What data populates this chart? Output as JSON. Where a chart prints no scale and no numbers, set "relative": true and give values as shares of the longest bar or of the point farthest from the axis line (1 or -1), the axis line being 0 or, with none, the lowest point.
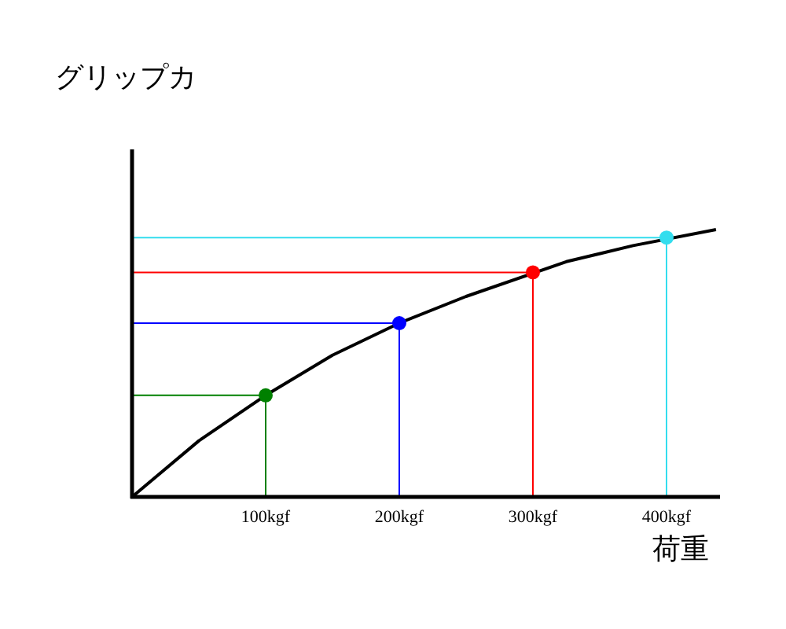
{
  "chart_data": {
    "type": "line",
    "ylabel": "グリップカ",
    "xlabel": "荷重",
    "relative": true,
    "xlim": [
      0,
      440
    ],
    "xticks": [
      {
        "value": 100,
        "label": "100kgf"
      },
      {
        "value": 200,
        "label": "200kgf"
      },
      {
        "value": 300,
        "label": "300kgf"
      },
      {
        "value": 400,
        "label": "400kgf"
      }
    ],
    "series": [
      {
        "color": "#000000",
        "x": [
          0,
          50,
          100,
          150,
          200,
          250,
          325,
          375,
          437
        ],
        "values": [
          0,
          0.21,
          0.38,
          0.53,
          0.65,
          0.75,
          0.88,
          0.94,
          1
        ]
      },
      {
        "color": "#008000",
        "x": [
          0,
          100,
          100
        ],
        "values": [
          0.38,
          0.38,
          0
        ]
      },
      {
        "color": "#0000ff",
        "x": [
          0,
          200,
          200
        ],
        "values": [
          0.65,
          0.65,
          0
        ]
      },
      {
        "color": "#ff0000",
        "x": [
          0,
          300,
          300
        ],
        "values": [
          0.84,
          0.84,
          0
        ]
      },
      {
        "color": "#33ddee",
        "x": [
          0,
          400,
          400
        ],
        "values": [
          0.97,
          0.97,
          0
        ]
      },
      {
        "type": "scatter",
        "x": [
          100,
          200,
          300,
          400
        ],
        "values": [
          0.38,
          0.65,
          0.84,
          0.97
        ],
        "colors": [
          "#008000",
          "#0000ff",
          "#ff0000",
          "#33ddee"
        ]
      }
    ]
  }
}
